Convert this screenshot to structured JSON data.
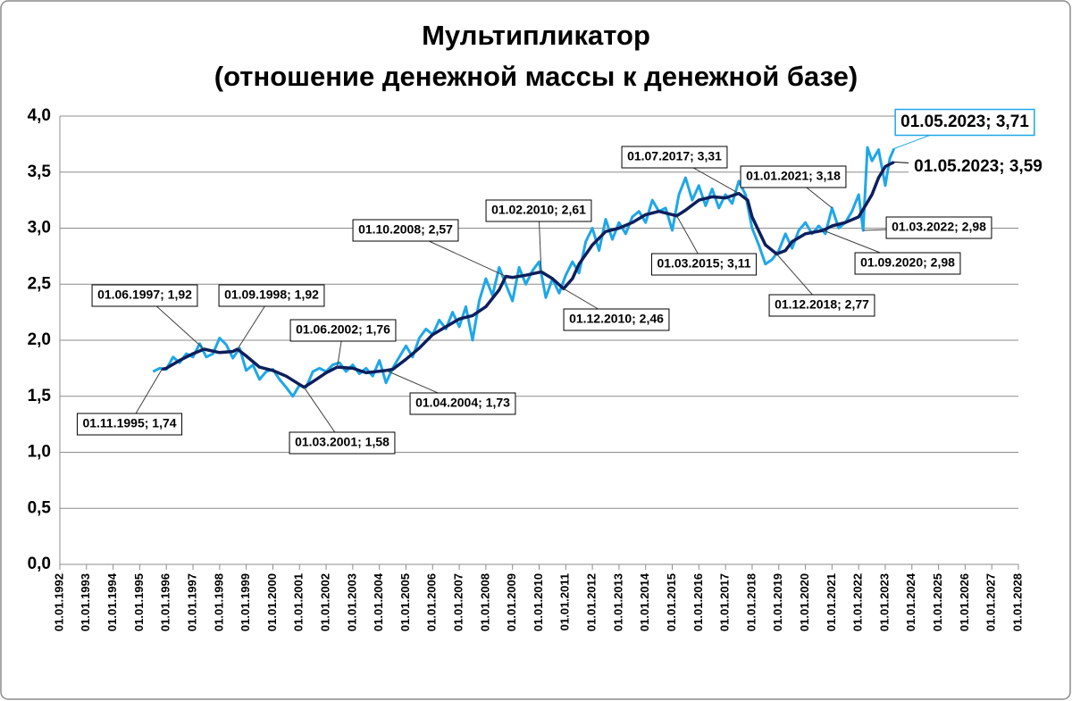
{
  "chart_data": {
    "type": "line",
    "title": "Мультипликатор",
    "subtitle": "(отношение денежной массы к денежной базе)",
    "xlim": [
      1992,
      2028
    ],
    "ylim": [
      0,
      4
    ],
    "grid": true,
    "yticks": [
      {
        "value": 0,
        "label": "0,0"
      },
      {
        "value": 0.5,
        "label": "0,5"
      },
      {
        "value": 1,
        "label": "1,0"
      },
      {
        "value": 1.5,
        "label": "1,5"
      },
      {
        "value": 2,
        "label": "2,0"
      },
      {
        "value": 2.5,
        "label": "2,5"
      },
      {
        "value": 3,
        "label": "3,0"
      },
      {
        "value": 3.5,
        "label": "3,5"
      },
      {
        "value": 4,
        "label": "4,0"
      }
    ],
    "xticks": [
      {
        "value": 1992,
        "label": "01.01.1992"
      },
      {
        "value": 1993,
        "label": "01.01.1993"
      },
      {
        "value": 1994,
        "label": "01.01.1994"
      },
      {
        "value": 1995,
        "label": "01.01.1995"
      },
      {
        "value": 1996,
        "label": "01.01.1996"
      },
      {
        "value": 1997,
        "label": "01.01.1997"
      },
      {
        "value": 1998,
        "label": "01.01.1998"
      },
      {
        "value": 1999,
        "label": "01.01.1999"
      },
      {
        "value": 2000,
        "label": "01.01.2000"
      },
      {
        "value": 2001,
        "label": "01.01.2001"
      },
      {
        "value": 2002,
        "label": "01.01.2002"
      },
      {
        "value": 2003,
        "label": "01.01.2003"
      },
      {
        "value": 2004,
        "label": "01.01.2004"
      },
      {
        "value": 2005,
        "label": "01.01.2005"
      },
      {
        "value": 2006,
        "label": "01.01.2006"
      },
      {
        "value": 2007,
        "label": "01.01.2007"
      },
      {
        "value": 2008,
        "label": "01.01.2008"
      },
      {
        "value": 2009,
        "label": "01.01.2009"
      },
      {
        "value": 2010,
        "label": "01.01.2010"
      },
      {
        "value": 2011,
        "label": "01.01.2011"
      },
      {
        "value": 2012,
        "label": "01.01.2012"
      },
      {
        "value": 2013,
        "label": "01.01.2013"
      },
      {
        "value": 2014,
        "label": "01.01.2014"
      },
      {
        "value": 2015,
        "label": "01.01.2015"
      },
      {
        "value": 2016,
        "label": "01.01.2016"
      },
      {
        "value": 2017,
        "label": "01.01.2017"
      },
      {
        "value": 2018,
        "label": "01.01.2018"
      },
      {
        "value": 2019,
        "label": "01.01.2019"
      },
      {
        "value": 2020,
        "label": "01.01.2020"
      },
      {
        "value": 2021,
        "label": "01.01.2021"
      },
      {
        "value": 2022,
        "label": "01.01.2022"
      },
      {
        "value": 2023,
        "label": "01.01.2023"
      },
      {
        "value": 2024,
        "label": "01.01.2024"
      },
      {
        "value": 2025,
        "label": "01.01.2025"
      },
      {
        "value": 2026,
        "label": "01.01.2026"
      },
      {
        "value": 2027,
        "label": "01.01.2027"
      },
      {
        "value": 2028,
        "label": "01.01.2028"
      }
    ],
    "series": [
      {
        "color": "#1ea7e8",
        "width": 3,
        "x": [
          1995.5,
          1995.75,
          1996,
          1996.25,
          1996.5,
          1996.75,
          1997,
          1997.25,
          1997.5,
          1997.75,
          1998,
          1998.25,
          1998.5,
          1998.75,
          1999,
          1999.25,
          1999.5,
          1999.75,
          2000,
          2000.25,
          2000.5,
          2000.75,
          2001,
          2001.25,
          2001.5,
          2001.75,
          2002,
          2002.25,
          2002.5,
          2002.75,
          2003,
          2003.25,
          2003.5,
          2003.75,
          2004,
          2004.25,
          2004.5,
          2004.75,
          2005,
          2005.25,
          2005.5,
          2005.75,
          2006,
          2006.25,
          2006.5,
          2006.75,
          2007,
          2007.25,
          2007.5,
          2007.75,
          2008,
          2008.25,
          2008.5,
          2008.75,
          2009,
          2009.25,
          2009.5,
          2009.75,
          2010,
          2010.25,
          2010.5,
          2010.75,
          2011,
          2011.25,
          2011.5,
          2011.75,
          2012,
          2012.25,
          2012.5,
          2012.75,
          2013,
          2013.25,
          2013.5,
          2013.75,
          2014,
          2014.25,
          2014.5,
          2014.75,
          2015,
          2015.25,
          2015.5,
          2015.75,
          2016,
          2016.25,
          2016.5,
          2016.75,
          2017,
          2017.25,
          2017.5,
          2017.75,
          2018,
          2018.25,
          2018.5,
          2018.75,
          2019,
          2019.25,
          2019.5,
          2019.75,
          2020,
          2020.25,
          2020.5,
          2020.75,
          2021,
          2021.25,
          2021.5,
          2021.75,
          2022,
          2022.17,
          2022.33,
          2022.5,
          2022.75,
          2023,
          2023.17,
          2023.33
        ],
        "values": [
          1.72,
          1.75,
          1.74,
          1.85,
          1.8,
          1.88,
          1.85,
          1.97,
          1.85,
          1.88,
          2.02,
          1.96,
          1.84,
          1.93,
          1.73,
          1.78,
          1.65,
          1.72,
          1.74,
          1.65,
          1.58,
          1.5,
          1.6,
          1.58,
          1.72,
          1.75,
          1.72,
          1.78,
          1.8,
          1.72,
          1.78,
          1.7,
          1.75,
          1.68,
          1.82,
          1.62,
          1.75,
          1.85,
          1.95,
          1.85,
          2.02,
          2.1,
          2.05,
          2.18,
          2.1,
          2.25,
          2.12,
          2.3,
          2.0,
          2.35,
          2.55,
          2.4,
          2.65,
          2.5,
          2.35,
          2.65,
          2.5,
          2.62,
          2.7,
          2.38,
          2.55,
          2.42,
          2.58,
          2.7,
          2.6,
          2.88,
          3.0,
          2.8,
          3.08,
          2.9,
          3.05,
          2.95,
          3.1,
          3.15,
          3.05,
          3.25,
          3.15,
          3.18,
          2.98,
          3.3,
          3.45,
          3.25,
          3.38,
          3.2,
          3.35,
          3.18,
          3.3,
          3.22,
          3.42,
          3.3,
          3.0,
          2.85,
          2.68,
          2.72,
          2.8,
          2.95,
          2.82,
          2.98,
          3.05,
          2.95,
          3.02,
          2.95,
          3.18,
          3.0,
          3.05,
          3.15,
          3.3,
          2.98,
          3.72,
          3.6,
          3.7,
          3.38,
          3.62,
          3.71
        ]
      },
      {
        "color": "#0d1f5c",
        "width": 3.5,
        "x": [
          1995.83,
          1996,
          1996.5,
          1997,
          1997.42,
          1998,
          1998.5,
          1998.67,
          1999,
          1999.5,
          2000,
          2000.5,
          2001.17,
          2001.5,
          2002,
          2002.42,
          2003,
          2003.5,
          2004.25,
          2004.5,
          2005,
          2005.5,
          2006,
          2006.5,
          2007,
          2007.5,
          2008,
          2008.5,
          2008.75,
          2009,
          2009.5,
          2010.08,
          2010.5,
          2010.92,
          2011.25,
          2011.5,
          2012,
          2012.5,
          2013,
          2013.5,
          2014,
          2014.5,
          2015.17,
          2015.5,
          2016,
          2016.5,
          2017,
          2017.5,
          2017.83,
          2018,
          2018.5,
          2018.92,
          2019.25,
          2019.5,
          2020,
          2020.67,
          2021,
          2021.5,
          2022,
          2022.5,
          2022.75,
          2023,
          2023.33
        ],
        "values": [
          1.74,
          1.75,
          1.82,
          1.88,
          1.92,
          1.89,
          1.9,
          1.92,
          1.86,
          1.76,
          1.73,
          1.68,
          1.58,
          1.63,
          1.71,
          1.76,
          1.75,
          1.71,
          1.73,
          1.74,
          1.83,
          1.93,
          2.05,
          2.12,
          2.19,
          2.22,
          2.3,
          2.45,
          2.57,
          2.56,
          2.58,
          2.61,
          2.55,
          2.46,
          2.55,
          2.68,
          2.85,
          2.97,
          3.0,
          3.05,
          3.12,
          3.15,
          3.11,
          3.16,
          3.25,
          3.28,
          3.27,
          3.31,
          3.25,
          3.1,
          2.85,
          2.77,
          2.8,
          2.88,
          2.95,
          2.98,
          3.02,
          3.05,
          3.1,
          3.3,
          3.45,
          3.55,
          3.59
        ]
      }
    ],
    "annotations": [
      {
        "label": "01.11.1995; 1,74",
        "x": 1995.83,
        "y": 1.74
      },
      {
        "label": "01.06.1997; 1,92",
        "x": 1997.42,
        "y": 1.92
      },
      {
        "label": "01.09.1998; 1,92",
        "x": 1998.67,
        "y": 1.92
      },
      {
        "label": "01.06.2002; 1,76",
        "x": 2002.42,
        "y": 1.76
      },
      {
        "label": "01.03.2001; 1,58",
        "x": 2001.17,
        "y": 1.58
      },
      {
        "label": "01.04.2004; 1,73",
        "x": 2004.25,
        "y": 1.73
      },
      {
        "label": "01.10.2008; 2,57",
        "x": 2008.75,
        "y": 2.57
      },
      {
        "label": "01.02.2010; 2,61",
        "x": 2010.08,
        "y": 2.61
      },
      {
        "label": "01.12.2010; 2,46",
        "x": 2010.92,
        "y": 2.46
      },
      {
        "label": "01.07.2017; 3,31",
        "x": 2017.5,
        "y": 3.31
      },
      {
        "label": "01.03.2015; 3,11",
        "x": 2015.17,
        "y": 3.11
      },
      {
        "label": "01.01.2021; 3,18",
        "x": 2021,
        "y": 3.18
      },
      {
        "label": "01.12.2018; 2,77",
        "x": 2018.92,
        "y": 2.77
      },
      {
        "label": "01.03.2022; 2,98",
        "x": 2022.17,
        "y": 2.98
      },
      {
        "label": "01.09.2020; 2,98",
        "x": 2020.67,
        "y": 2.98
      },
      {
        "label": "01.05.2023; 3,71",
        "x": 2023.33,
        "y": 3.71,
        "color": "#1ea7e8"
      },
      {
        "label": "01.05.2023; 3,59",
        "x": 2023.33,
        "y": 3.59,
        "color": "#000000"
      }
    ]
  }
}
